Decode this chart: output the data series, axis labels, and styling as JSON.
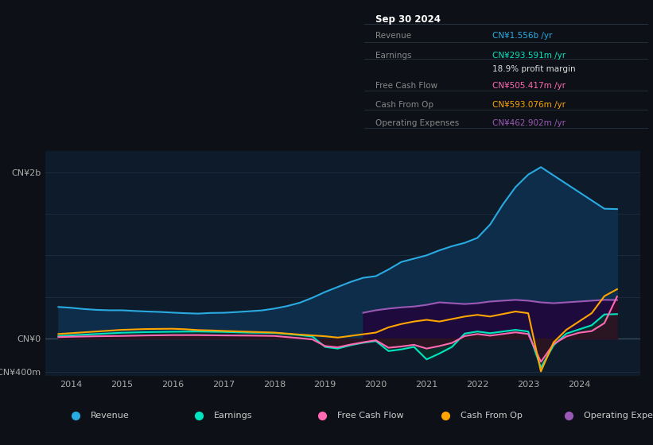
{
  "bg_color": "#0d1117",
  "chart_bg": "#0d1b2a",
  "title": "Sep 30 2024",
  "info_box_rows": [
    {
      "label": "Revenue",
      "value": "CN¥1.556b /yr",
      "color": "#29abe2"
    },
    {
      "label": "Earnings",
      "value": "CN¥293.591m /yr",
      "color": "#00e5c0"
    },
    {
      "label": "",
      "value": "18.9% profit margin",
      "color": "#dddddd"
    },
    {
      "label": "Free Cash Flow",
      "value": "CN¥505.417m /yr",
      "color": "#ff69b4"
    },
    {
      "label": "Cash From Op",
      "value": "CN¥593.076m /yr",
      "color": "#ffa500"
    },
    {
      "label": "Operating Expenses",
      "value": "CN¥462.902m /yr",
      "color": "#9b59b6"
    }
  ],
  "ylim": [
    -450,
    2250
  ],
  "ytick_vals": [
    2000,
    0,
    -400
  ],
  "ytick_labels": [
    "CN¥2b",
    "CN¥0",
    "-CN¥400m"
  ],
  "xlim": [
    2013.5,
    2025.2
  ],
  "xtick_vals": [
    2014,
    2015,
    2016,
    2017,
    2018,
    2019,
    2020,
    2021,
    2022,
    2023,
    2024
  ],
  "xtick_labels": [
    "2014",
    "2015",
    "2016",
    "2017",
    "2018",
    "2019",
    "2020",
    "2021",
    "2022",
    "2023",
    "2024"
  ],
  "revenue_color": "#29abe2",
  "revenue_fill": "#0e2d4a",
  "revenue_x": [
    2013.75,
    2014.0,
    2014.25,
    2014.5,
    2014.75,
    2015.0,
    2015.25,
    2015.5,
    2015.75,
    2016.0,
    2016.25,
    2016.5,
    2016.75,
    2017.0,
    2017.25,
    2017.5,
    2017.75,
    2018.0,
    2018.25,
    2018.5,
    2018.75,
    2019.0,
    2019.25,
    2019.5,
    2019.75,
    2020.0,
    2020.25,
    2020.5,
    2020.75,
    2021.0,
    2021.25,
    2021.5,
    2021.75,
    2022.0,
    2022.25,
    2022.5,
    2022.75,
    2023.0,
    2023.25,
    2023.5,
    2023.75,
    2024.0,
    2024.25,
    2024.5,
    2024.75
  ],
  "revenue_y": [
    380,
    370,
    355,
    345,
    340,
    340,
    332,
    325,
    320,
    312,
    305,
    300,
    308,
    310,
    318,
    328,
    338,
    360,
    390,
    430,
    490,
    560,
    620,
    680,
    730,
    750,
    830,
    920,
    960,
    1000,
    1060,
    1110,
    1150,
    1210,
    1370,
    1610,
    1820,
    1970,
    2060,
    1960,
    1860,
    1760,
    1660,
    1560,
    1556
  ],
  "earnings_color": "#00e5c0",
  "earnings_fill": "#0a3028",
  "earnings_x": [
    2013.75,
    2014.0,
    2014.5,
    2015.0,
    2015.5,
    2016.0,
    2016.5,
    2017.0,
    2017.5,
    2018.0,
    2018.25,
    2018.5,
    2018.75,
    2019.0,
    2019.25,
    2019.5,
    2019.75,
    2020.0,
    2020.25,
    2020.5,
    2020.75,
    2021.0,
    2021.25,
    2021.5,
    2021.75,
    2022.0,
    2022.25,
    2022.5,
    2022.75,
    2023.0,
    2023.25,
    2023.5,
    2023.75,
    2024.0,
    2024.25,
    2024.5,
    2024.75
  ],
  "earnings_y": [
    30,
    38,
    55,
    70,
    78,
    82,
    85,
    80,
    72,
    68,
    55,
    42,
    25,
    -100,
    -120,
    -80,
    -50,
    -30,
    -150,
    -130,
    -100,
    -250,
    -180,
    -100,
    60,
    85,
    65,
    85,
    105,
    85,
    -350,
    -80,
    60,
    110,
    160,
    290,
    294
  ],
  "fcf_color": "#ff69b4",
  "fcf_fill": "#3a0a20",
  "fcf_x": [
    2013.75,
    2014.0,
    2014.5,
    2015.0,
    2015.5,
    2016.0,
    2016.5,
    2017.0,
    2017.5,
    2018.0,
    2018.25,
    2018.5,
    2018.75,
    2019.0,
    2019.25,
    2019.5,
    2019.75,
    2020.0,
    2020.25,
    2020.5,
    2020.75,
    2021.0,
    2021.25,
    2021.5,
    2021.75,
    2022.0,
    2022.25,
    2022.5,
    2022.75,
    2023.0,
    2023.25,
    2023.5,
    2023.75,
    2024.0,
    2024.25,
    2024.5,
    2024.75
  ],
  "fcf_y": [
    18,
    22,
    28,
    32,
    38,
    42,
    42,
    38,
    36,
    32,
    18,
    5,
    -10,
    -90,
    -105,
    -72,
    -45,
    -20,
    -110,
    -95,
    -75,
    -120,
    -90,
    -52,
    30,
    55,
    35,
    55,
    75,
    55,
    -280,
    -65,
    25,
    70,
    90,
    185,
    505
  ],
  "cop_color": "#ffa500",
  "cop_x": [
    2013.75,
    2014.0,
    2014.5,
    2015.0,
    2015.5,
    2016.0,
    2016.25,
    2016.5,
    2016.75,
    2017.0,
    2017.5,
    2018.0,
    2018.5,
    2019.0,
    2019.25,
    2019.5,
    2019.75,
    2020.0,
    2020.25,
    2020.5,
    2020.75,
    2021.0,
    2021.25,
    2021.5,
    2021.75,
    2022.0,
    2022.25,
    2022.5,
    2022.75,
    2023.0,
    2023.25,
    2023.5,
    2023.75,
    2024.0,
    2024.25,
    2024.5,
    2024.75
  ],
  "cop_y": [
    55,
    65,
    85,
    105,
    115,
    118,
    112,
    102,
    98,
    92,
    82,
    72,
    48,
    28,
    12,
    32,
    52,
    72,
    135,
    175,
    205,
    225,
    205,
    235,
    265,
    285,
    265,
    295,
    325,
    305,
    -395,
    -45,
    105,
    205,
    305,
    510,
    593
  ],
  "opex_color": "#9b59b6",
  "opex_fill": "#1e0a3c",
  "opex_x": [
    2019.75,
    2020.0,
    2020.25,
    2020.5,
    2020.75,
    2021.0,
    2021.25,
    2021.5,
    2021.75,
    2022.0,
    2022.25,
    2022.5,
    2022.75,
    2023.0,
    2023.25,
    2023.5,
    2023.75,
    2024.0,
    2024.25,
    2024.5,
    2024.75
  ],
  "opex_y": [
    310,
    340,
    360,
    375,
    385,
    405,
    435,
    425,
    415,
    425,
    445,
    455,
    465,
    455,
    435,
    425,
    435,
    445,
    455,
    465,
    463
  ],
  "legend": [
    {
      "label": "Revenue",
      "color": "#29abe2"
    },
    {
      "label": "Earnings",
      "color": "#00e5c0"
    },
    {
      "label": "Free Cash Flow",
      "color": "#ff69b4"
    },
    {
      "label": "Cash From Op",
      "color": "#ffa500"
    },
    {
      "label": "Operating Expenses",
      "color": "#9b59b6"
    }
  ]
}
